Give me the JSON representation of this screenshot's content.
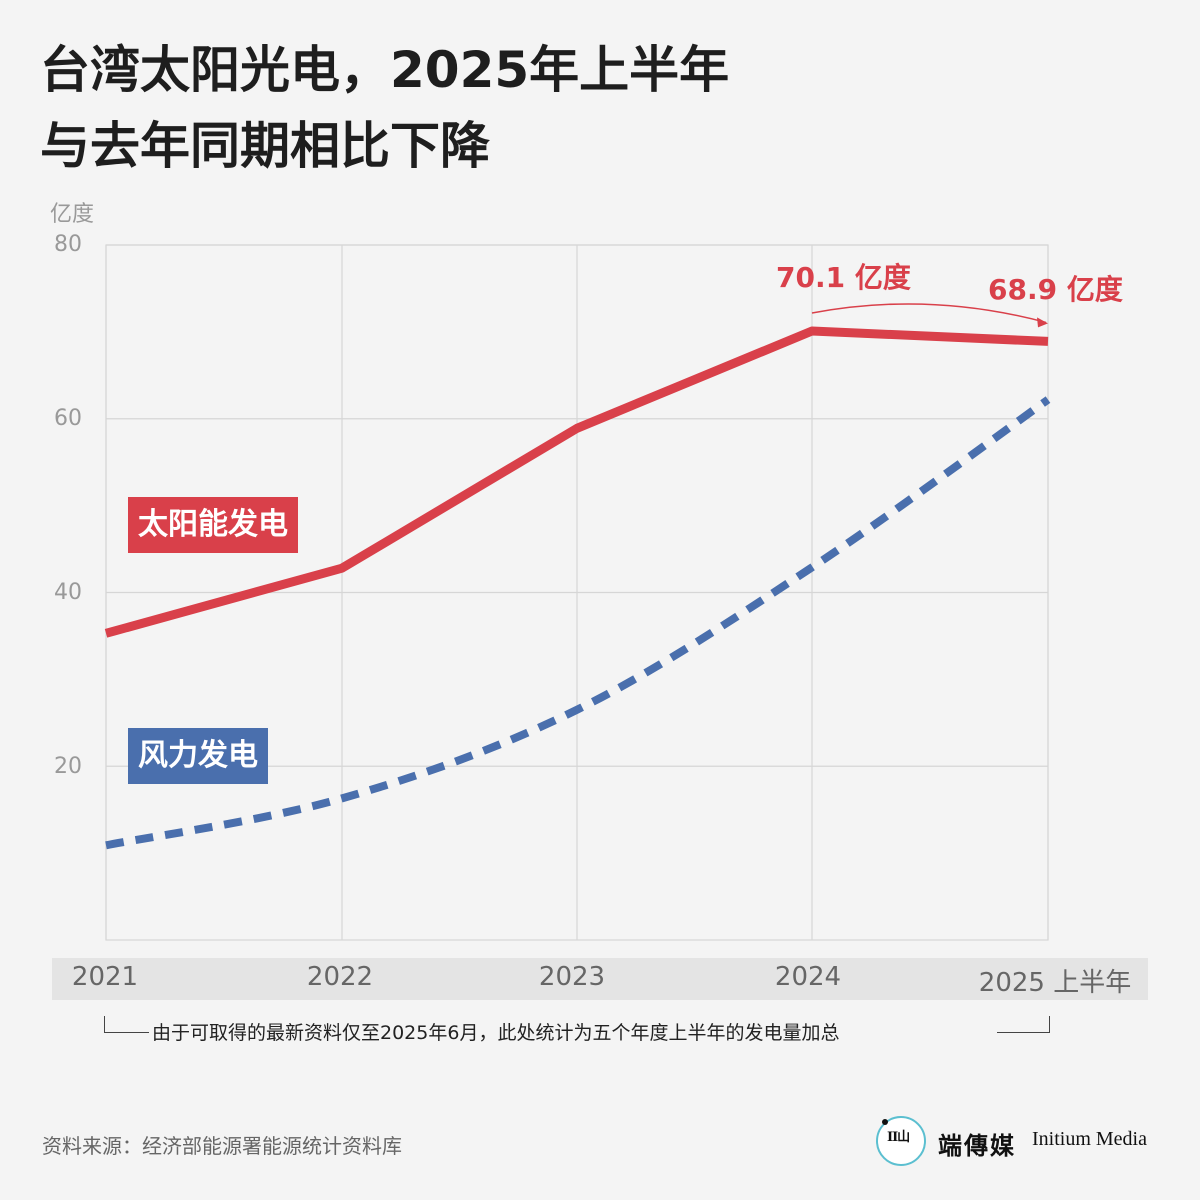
{
  "title": {
    "line1": "台湾太阳光电，2025年上半年",
    "line2": "与去年同期相比下降"
  },
  "note": "由于可取得的最新资料仅至2025年6月，此处统计为五个年度上半年的发电量加总",
  "source": "资料来源：经济部能源署能源统计资料库",
  "brand": {
    "cn": "端傳媒",
    "en": "Initium Media",
    "logo_text": "ΙΙ山"
  },
  "colors": {
    "solar": "#d9404a",
    "wind": "#4a6fad",
    "grid": "#d6d6d6",
    "axis_text": "#999999"
  },
  "chart_data": {
    "type": "line",
    "ylabel": "亿度",
    "ylim": [
      0,
      80
    ],
    "yticks": [
      "20",
      "40",
      "60",
      "80"
    ],
    "ytick_values": [
      20,
      40,
      60,
      80
    ],
    "categories": [
      "2021",
      "2022",
      "2023",
      "2024",
      "2025 上半年"
    ],
    "series": [
      {
        "name": "太阳能发电",
        "values": [
          35.3,
          42.8,
          58.9,
          70.1,
          68.9
        ],
        "style": "solid"
      },
      {
        "name": "风力发电",
        "values": [
          10.9,
          16.3,
          26.5,
          42.9,
          62.2
        ],
        "style": "dashed"
      }
    ],
    "annotations": [
      {
        "text": "70.1 亿度",
        "category": "2024",
        "value": 70.1
      },
      {
        "text": "68.9 亿度",
        "category": "2025 上半年",
        "value": 68.9
      }
    ]
  }
}
